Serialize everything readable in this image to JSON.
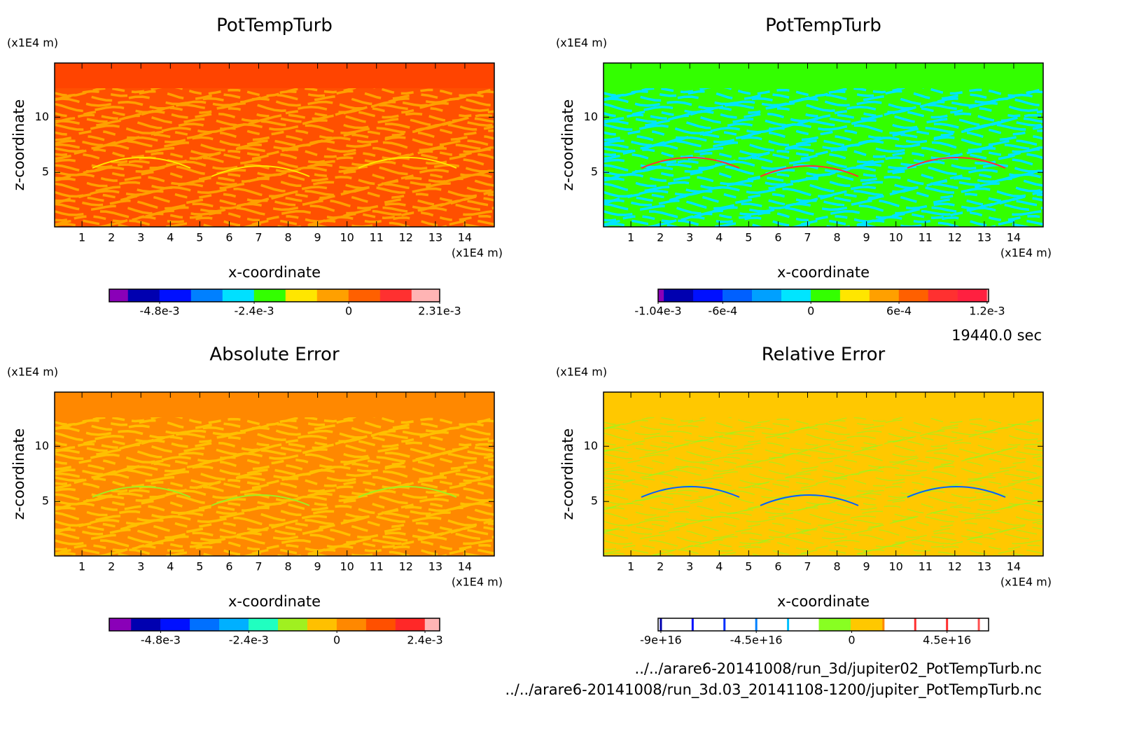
{
  "chart_data": [
    {
      "type": "contour",
      "title": "PotTempTurb",
      "xlabel": "x-coordinate",
      "ylabel": "z-coordinate",
      "xunit": "(x1E4 m)",
      "yunit": "(x1E4 m)",
      "xlim": [
        0.07,
        15
      ],
      "ylim": [
        0.07,
        14.9
      ],
      "xticks": [
        1,
        2,
        3,
        4,
        5,
        6,
        7,
        8,
        9,
        10,
        11,
        12,
        13,
        14
      ],
      "yticks": [
        5,
        10
      ],
      "colorbar": {
        "bounds": [
          -0.00608,
          -0.0056,
          -0.0048,
          -0.004,
          -0.0032,
          -0.0024,
          -0.0016,
          -0.0008,
          0,
          0.0008,
          0.0016,
          0.00231
        ],
        "colors": [
          "#8a00b8",
          "#0000b0",
          "#0010ff",
          "#0080ff",
          "#00e0ff",
          "#33ff00",
          "#ffe600",
          "#ffa000",
          "#ff6000",
          "#ff3030",
          "#ffb4b4"
        ],
        "ticks": [
          {
            "value": -0.0048,
            "label": "-4.8e-3"
          },
          {
            "value": -0.0024,
            "label": "-2.4e-3"
          },
          0,
          {
            "value": 0.00231,
            "label": "2.31e-3"
          }
        ]
      }
    },
    {
      "type": "contour",
      "title": "PotTempTurb",
      "xlabel": "x-coordinate",
      "ylabel": "z-coordinate",
      "xunit": "(x1E4 m)",
      "yunit": "(x1E4 m)",
      "xlim": [
        0.07,
        15
      ],
      "ylim": [
        0.07,
        14.9
      ],
      "xticks": [
        1,
        2,
        3,
        4,
        5,
        6,
        7,
        8,
        9,
        10,
        11,
        12,
        13,
        14
      ],
      "yticks": [
        5,
        10
      ],
      "colorbar": {
        "bounds": [
          -0.00104,
          -0.001,
          -0.0008,
          -0.0006,
          -0.0004,
          -0.0002,
          0,
          0.0002,
          0.0004,
          0.0006,
          0.0008,
          0.001,
          0.0012,
          0.00121
        ],
        "colors": [
          "#8a00b8",
          "#0000b0",
          "#0010ff",
          "#0060ff",
          "#00a0ff",
          "#00e5ff",
          "#33ff00",
          "#ffe600",
          "#ffa000",
          "#ff6000",
          "#ff3030",
          "#ff2040",
          "#ffb4b4"
        ],
        "ticks": [
          {
            "value": -0.00104,
            "label": "-1.04e-3"
          },
          {
            "value": -0.0006,
            "label": "-6e-4"
          },
          0,
          {
            "value": 0.0006,
            "label": "6e-4"
          },
          {
            "value": 0.0012,
            "label": "1.2e-3"
          }
        ]
      }
    },
    {
      "type": "contour",
      "title": "Absolute Error",
      "xlabel": "x-coordinate",
      "ylabel": "z-coordinate",
      "xunit": "(x1E4 m)",
      "yunit": "(x1E4 m)",
      "xlim": [
        0.07,
        15
      ],
      "ylim": [
        0.07,
        14.9
      ],
      "xticks": [
        1,
        2,
        3,
        4,
        5,
        6,
        7,
        8,
        9,
        10,
        11,
        12,
        13,
        14
      ],
      "yticks": [
        5,
        10
      ],
      "colorbar": {
        "bounds": [
          -0.0062,
          -0.0056,
          -0.0048,
          -0.004,
          -0.0032,
          -0.0024,
          -0.0016,
          -0.0008,
          0,
          0.0008,
          0.0016,
          0.0024,
          0.0028
        ],
        "colors": [
          "#8a00b8",
          "#0000b0",
          "#0010ff",
          "#0070ff",
          "#00b0ff",
          "#20ffc0",
          "#a0f020",
          "#ffc000",
          "#ff8800",
          "#ff5000",
          "#ff2828",
          "#ffb4b4"
        ],
        "ticks": [
          {
            "value": -0.0048,
            "label": "-4.8e-3"
          },
          {
            "value": -0.0024,
            "label": "-2.4e-3"
          },
          0,
          {
            "value": 0.0024,
            "label": "2.4e-3"
          }
        ]
      }
    },
    {
      "type": "contour",
      "title": "Relative Error",
      "xlabel": "x-coordinate",
      "ylabel": "z-coordinate",
      "xunit": "(x1E4 m)",
      "yunit": "(x1E4 m)",
      "xlim": [
        0.07,
        15
      ],
      "ylim": [
        0.07,
        14.9
      ],
      "xticks": [
        1,
        2,
        3,
        4,
        5,
        6,
        7,
        8,
        9,
        10,
        11,
        12,
        13,
        14
      ],
      "yticks": [
        5,
        10
      ],
      "colorbar": {
        "bounds": [
          -9.13e+16,
          -9e+16,
          -7.5e+16,
          -6e+16,
          -4.5e+16,
          -3e+16,
          -1.5e+16,
          0,
          1.5e+16,
          3e+16,
          4.5e+16,
          6e+16,
          6.46e+16
        ],
        "colors": [
          "#ffffff",
          "#ffffff",
          "#ffffff",
          "#ffffff",
          "#ffffff",
          "#ffffff",
          "#88ff22",
          "#ffc800",
          "#ffffff",
          "#ffffff",
          "#ffffff",
          "#ffffff"
        ],
        "ticks": [
          {
            "value": -9e+16,
            "label": "-9e+16"
          },
          {
            "value": -4.5e+16,
            "label": "-4.5e+16"
          },
          0,
          {
            "value": 4.5e+16,
            "label": "4.5e+16"
          }
        ]
      }
    }
  ],
  "time_label": "19440.0 sec",
  "files": [
    "../../arare6-20141008/run_3d/jupiter02_PotTempTurb.nc",
    "../../arare6-20141008/run_3d.03_20141108-1200/jupiter_PotTempTurb.nc"
  ]
}
